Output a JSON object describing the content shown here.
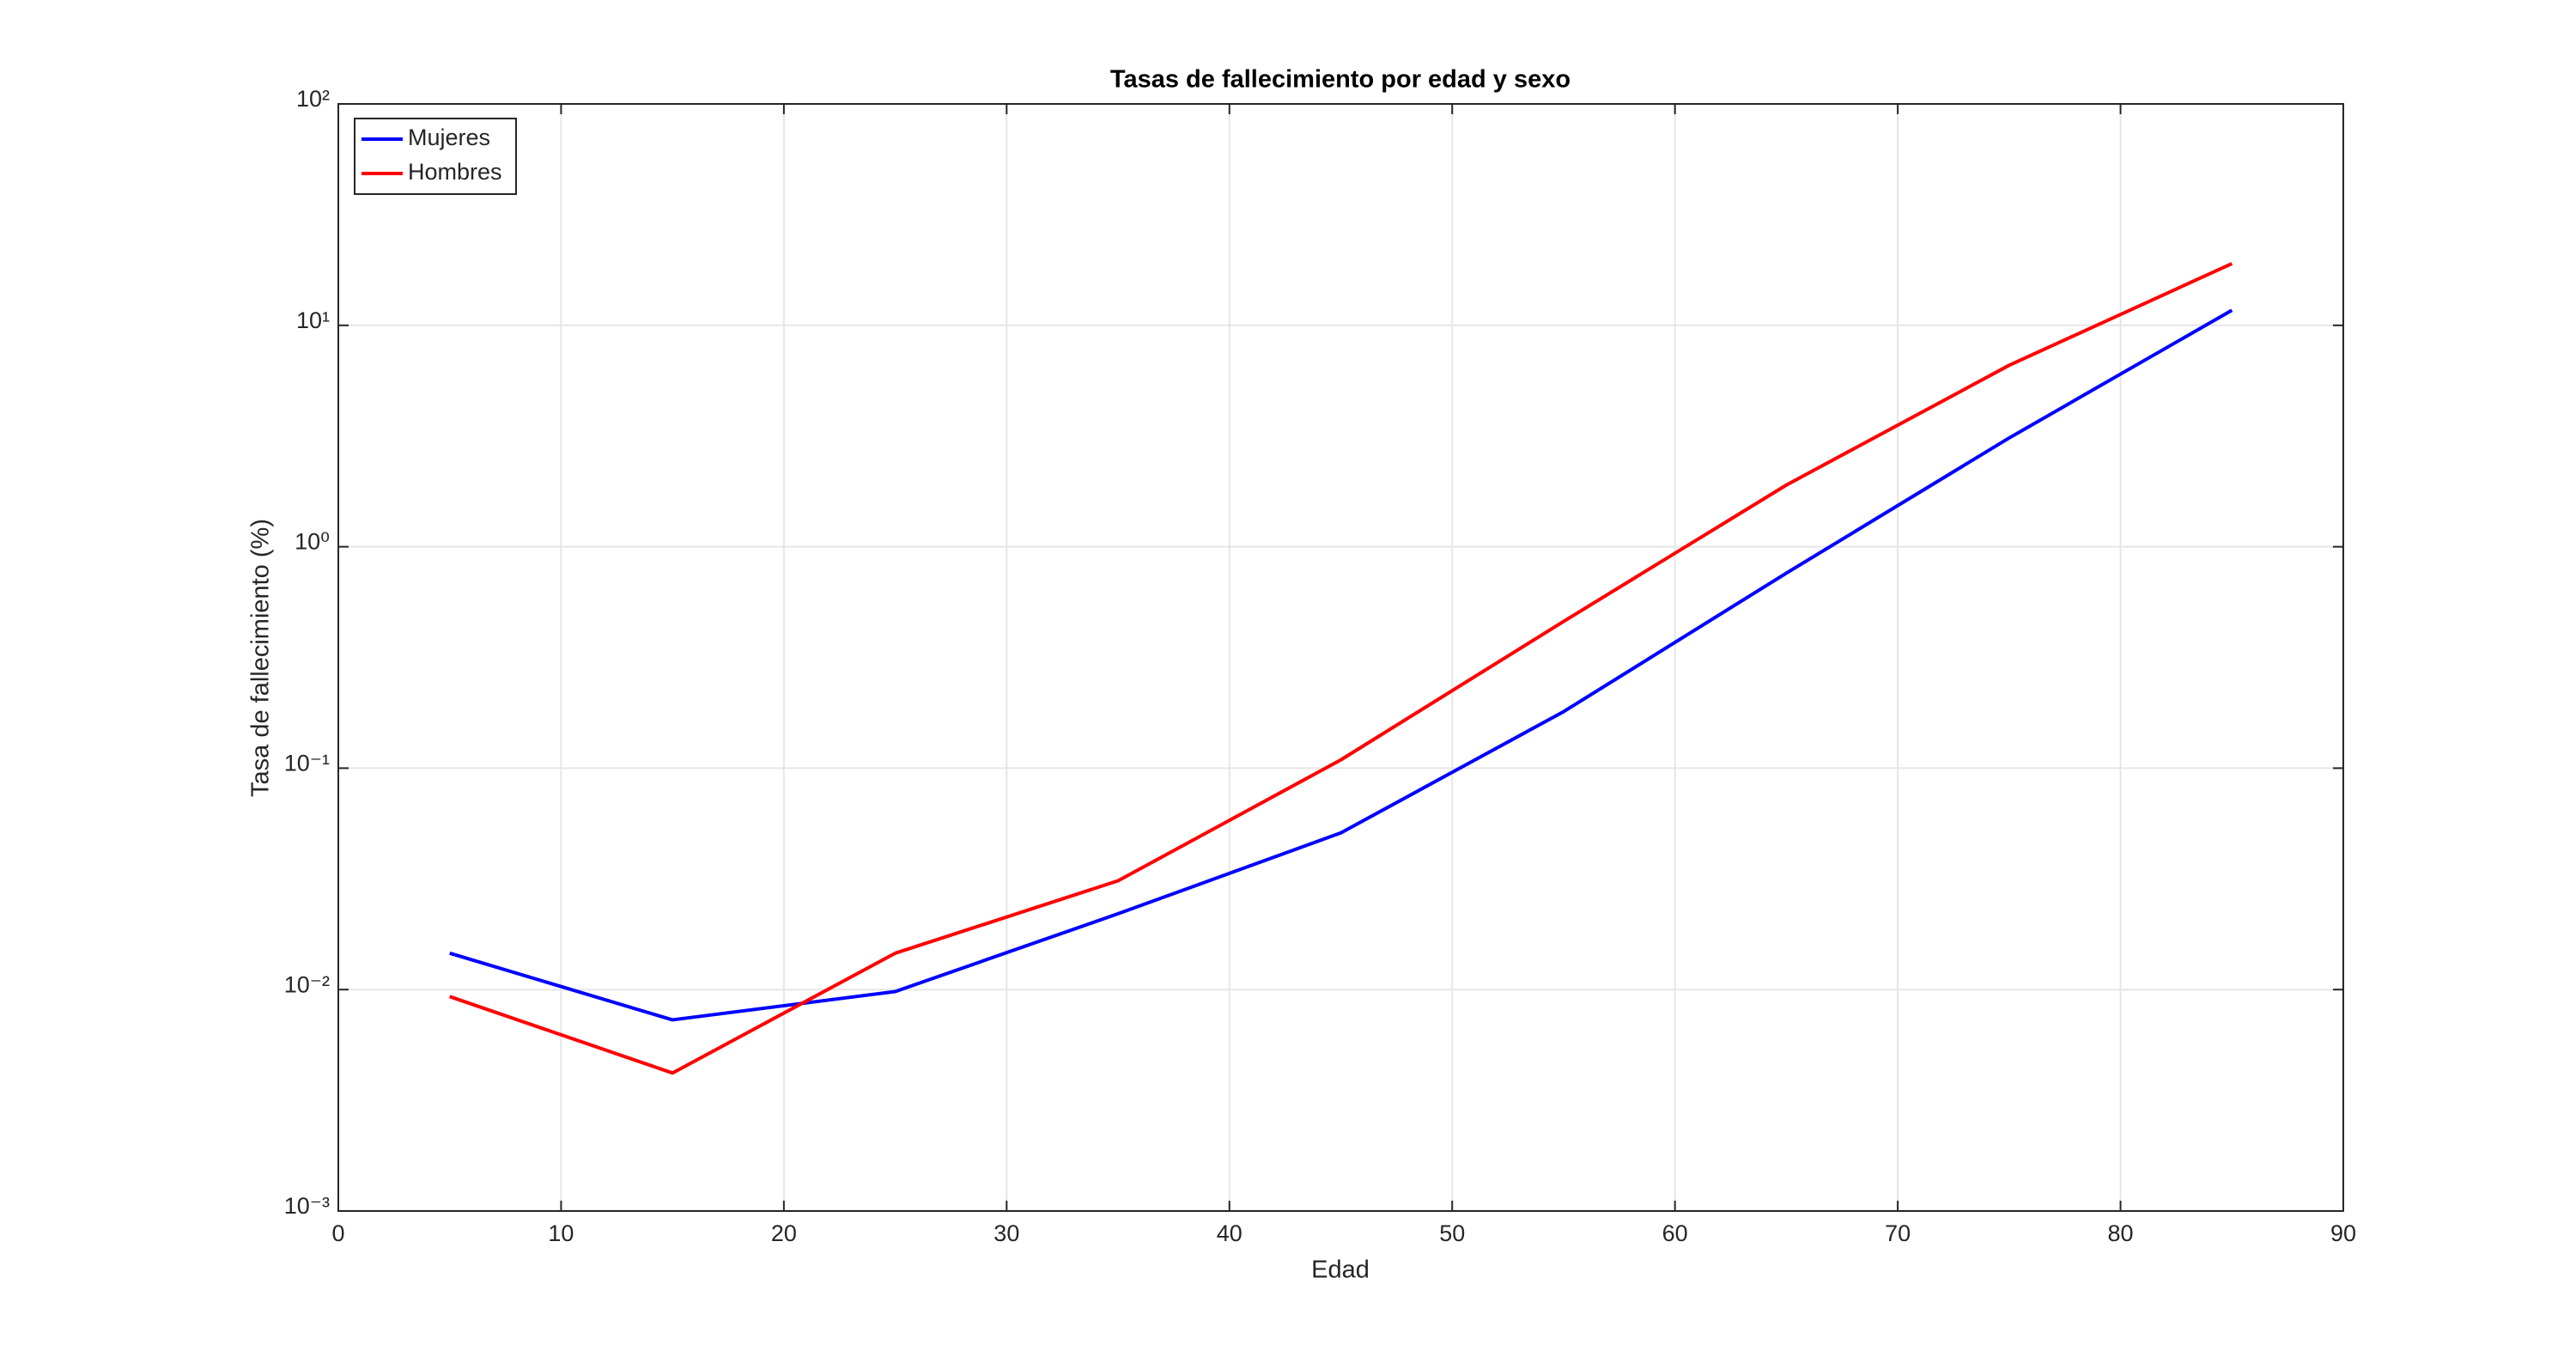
{
  "chart_data": {
    "type": "line",
    "title": "Tasas de fallecimiento por edad y sexo",
    "xlabel": "Edad",
    "ylabel": "Tasa de fallecimiento (%)",
    "x": [
      5,
      15,
      25,
      35,
      45,
      55,
      65,
      75,
      85
    ],
    "series": [
      {
        "name": "Mujeres",
        "color": "#0000ff",
        "values": [
          0.0146,
          0.0073,
          0.0098,
          0.022,
          0.051,
          0.18,
          0.76,
          3.1,
          11.7
        ]
      },
      {
        "name": "Hombres",
        "color": "#ff0000",
        "values": [
          0.0093,
          0.0042,
          0.0146,
          0.031,
          0.109,
          0.46,
          1.9,
          6.6,
          19
        ]
      }
    ],
    "xlim": [
      0,
      90
    ],
    "xticks": [
      0,
      10,
      20,
      30,
      40,
      50,
      60,
      70,
      80,
      90
    ],
    "ylim": [
      0.001,
      100
    ],
    "yticks": [
      {
        "value": 0.001,
        "label": "10⁻³"
      },
      {
        "value": 0.01,
        "label": "10⁻²"
      },
      {
        "value": 0.1,
        "label": "10⁻¹"
      },
      {
        "value": 1,
        "label": "10⁰"
      },
      {
        "value": 10,
        "label": "10¹"
      },
      {
        "value": 100,
        "label": "10²"
      }
    ],
    "log_y": true,
    "grid": true,
    "legend": "upper-left"
  }
}
